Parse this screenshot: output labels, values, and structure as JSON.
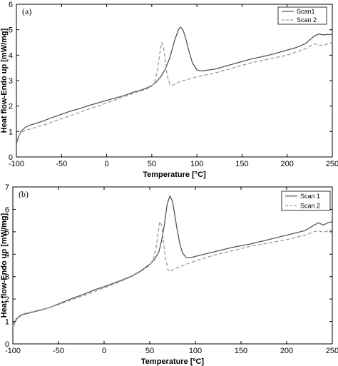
{
  "chart_data": [
    {
      "type": "line",
      "panel_label": "(a)",
      "xlabel": "Temperature [°C]",
      "ylabel": "Heat flow-Endo up [mW/mg]",
      "xlim": [
        -100,
        250
      ],
      "ylim": [
        0,
        6
      ],
      "xticks": [
        -100,
        -50,
        0,
        50,
        100,
        150,
        200,
        250
      ],
      "yticks": [
        0,
        1,
        2,
        3,
        4,
        5,
        6
      ],
      "grid": false,
      "legend_position": "top-right",
      "series": [
        {
          "name": "Scan1",
          "style": "solid",
          "color": "#555555",
          "x": [
            -100,
            -98,
            -95,
            -90,
            -85,
            -80,
            -70,
            -60,
            -50,
            -40,
            -30,
            -20,
            -10,
            0,
            10,
            20,
            30,
            40,
            45,
            50,
            55,
            60,
            65,
            70,
            75,
            80,
            82,
            85,
            88,
            90,
            95,
            100,
            105,
            110,
            120,
            140,
            160,
            180,
            200,
            210,
            220,
            230,
            235,
            240,
            245,
            250
          ],
          "y": [
            0.5,
            0.75,
            1.0,
            1.17,
            1.25,
            1.3,
            1.42,
            1.55,
            1.68,
            1.8,
            1.9,
            2.02,
            2.12,
            2.22,
            2.32,
            2.42,
            2.55,
            2.65,
            2.72,
            2.8,
            2.95,
            3.15,
            3.45,
            3.9,
            4.55,
            5.05,
            5.1,
            4.95,
            4.6,
            4.3,
            3.7,
            3.42,
            3.38,
            3.4,
            3.45,
            3.65,
            3.85,
            4.0,
            4.2,
            4.3,
            4.45,
            4.75,
            4.83,
            4.8,
            4.81,
            4.82
          ]
        },
        {
          "name": "Scan 2",
          "style": "dashed",
          "color": "#9a9a9a",
          "x": [
            -100,
            -98,
            -95,
            -90,
            -85,
            -80,
            -70,
            -60,
            -50,
            -40,
            -30,
            -20,
            -10,
            0,
            10,
            20,
            30,
            40,
            45,
            50,
            53,
            55,
            57,
            59,
            61,
            63,
            65,
            67,
            70,
            72,
            75,
            80,
            90,
            100,
            120,
            140,
            160,
            180,
            200,
            220,
            230,
            235,
            240,
            245,
            250
          ],
          "y": [
            0.6,
            0.8,
            0.95,
            1.05,
            1.1,
            1.15,
            1.25,
            1.38,
            1.5,
            1.62,
            1.75,
            1.88,
            2.0,
            2.12,
            2.25,
            2.38,
            2.5,
            2.62,
            2.68,
            2.78,
            2.95,
            3.2,
            3.6,
            4.1,
            4.5,
            4.3,
            3.8,
            3.2,
            2.85,
            2.8,
            2.85,
            2.95,
            3.05,
            3.15,
            3.3,
            3.5,
            3.7,
            3.85,
            4.0,
            4.25,
            4.45,
            4.4,
            4.38,
            4.45,
            4.5
          ]
        }
      ]
    },
    {
      "type": "line",
      "panel_label": "(b)",
      "xlabel": "Temperature [ºC]",
      "ylabel": "Heat flow-Endo up [mW/mg]",
      "xlim": [
        -100,
        250
      ],
      "ylim": [
        0,
        7
      ],
      "xticks": [
        -100,
        -50,
        0,
        50,
        100,
        150,
        200,
        250
      ],
      "yticks": [
        0,
        1,
        2,
        3,
        4,
        5,
        6,
        7
      ],
      "grid": false,
      "legend_position": "top-right",
      "series": [
        {
          "name": "Scan 1",
          "style": "solid",
          "color": "#555555",
          "x": [
            -100,
            -98,
            -95,
            -90,
            -85,
            -80,
            -70,
            -60,
            -50,
            -40,
            -30,
            -20,
            -10,
            0,
            10,
            20,
            30,
            40,
            50,
            55,
            60,
            63,
            66,
            69,
            72,
            75,
            78,
            80,
            83,
            86,
            90,
            95,
            100,
            120,
            140,
            160,
            180,
            200,
            220,
            230,
            235,
            240,
            245,
            250
          ],
          "y": [
            0.75,
            0.95,
            1.15,
            1.3,
            1.35,
            1.4,
            1.5,
            1.62,
            1.78,
            1.95,
            2.1,
            2.25,
            2.42,
            2.55,
            2.7,
            2.85,
            3.02,
            3.25,
            3.55,
            3.75,
            4.1,
            4.6,
            5.3,
            6.2,
            6.6,
            6.35,
            5.6,
            5.1,
            4.45,
            4.05,
            3.85,
            3.85,
            3.9,
            4.1,
            4.3,
            4.45,
            4.65,
            4.85,
            5.05,
            5.3,
            5.4,
            5.3,
            5.4,
            5.45
          ]
        },
        {
          "name": "Scan 2",
          "style": "dashed",
          "color": "#9a9a9a",
          "x": [
            -100,
            -98,
            -95,
            -90,
            -85,
            -80,
            -70,
            -60,
            -50,
            -40,
            -30,
            -20,
            -10,
            0,
            10,
            20,
            30,
            40,
            50,
            54,
            57,
            59,
            61,
            63,
            65,
            67,
            70,
            72,
            75,
            80,
            90,
            100,
            120,
            140,
            160,
            180,
            200,
            220,
            230,
            235,
            240,
            250
          ],
          "y": [
            0.8,
            1.0,
            1.2,
            1.32,
            1.38,
            1.42,
            1.52,
            1.62,
            1.75,
            1.9,
            2.05,
            2.2,
            2.35,
            2.5,
            2.65,
            2.82,
            3.0,
            3.22,
            3.5,
            3.8,
            4.3,
            4.9,
            5.45,
            5.3,
            4.6,
            3.85,
            3.3,
            3.22,
            3.3,
            3.4,
            3.55,
            3.7,
            3.95,
            4.15,
            4.35,
            4.5,
            4.65,
            4.85,
            5.0,
            5.05,
            4.98,
            5.1
          ]
        }
      ]
    }
  ]
}
